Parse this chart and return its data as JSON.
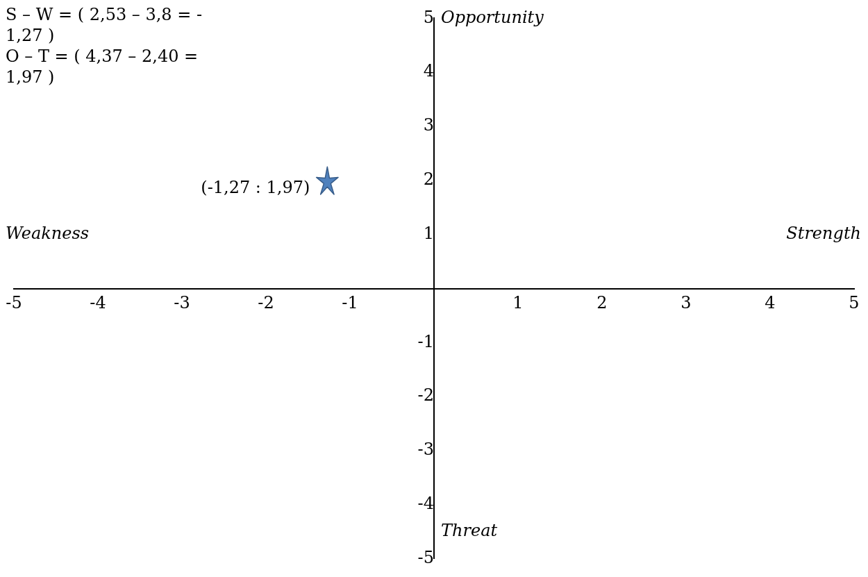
{
  "chart_data": {
    "type": "scatter",
    "x": [
      -1.27
    ],
    "series": [
      {
        "color": "#4f81bd",
        "values": [
          1.97
        ]
      }
    ],
    "xlim": [
      -5,
      5
    ],
    "ylim": [
      -5,
      5
    ],
    "xticks": [
      -5,
      -4,
      -3,
      -2,
      -1,
      1,
      2,
      3,
      4,
      5
    ],
    "yticks": [
      -5,
      -4,
      -3,
      -2,
      -1,
      1,
      2,
      3,
      4,
      5
    ],
    "grid": false,
    "legend": false,
    "marker": "star",
    "annotations": [
      "S – W = ( 2,53 – 3,8 = - 1,27 )",
      "O – T = ( 4,37 – 2,40 = 1,97 )",
      {
        "text": "(-1,27 : 1,97)",
        "x": -1.27,
        "y": 1.97
      },
      "Weakness",
      "Strength",
      "Opportunity",
      "Threat"
    ]
  }
}
